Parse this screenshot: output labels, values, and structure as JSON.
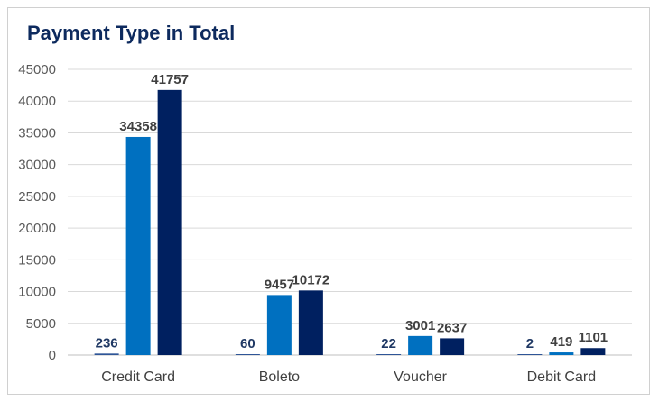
{
  "chart_data": {
    "type": "bar",
    "title": "Payment Type in Total",
    "categories": [
      "Credit Card",
      "Boleto",
      "Voucher",
      "Debit Card"
    ],
    "series": [
      {
        "values": [
          236,
          60,
          22,
          2
        ],
        "color": "#2e5597",
        "label_color": "#1f3864"
      },
      {
        "values": [
          34358,
          9457,
          3001,
          419
        ],
        "color": "#0070c0",
        "label_color": "#404040"
      },
      {
        "values": [
          41757,
          10172,
          2637,
          1101
        ],
        "color": "#002060",
        "label_color": "#404040"
      }
    ],
    "ylim": [
      0,
      45000
    ],
    "yticks": [
      0,
      5000,
      10000,
      15000,
      20000,
      25000,
      30000,
      35000,
      40000,
      45000
    ],
    "grid": true,
    "gridline_color": "#d9d9d9",
    "axis_color": "#bfbfbf"
  }
}
